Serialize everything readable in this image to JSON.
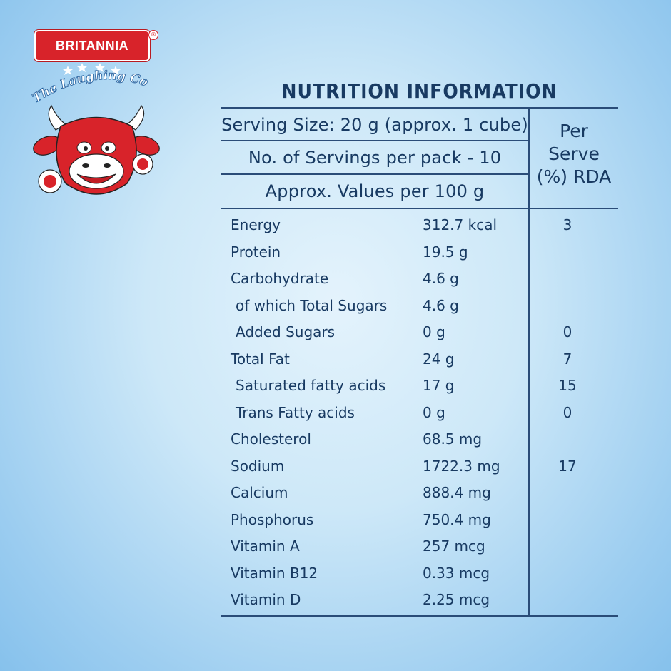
{
  "brand": {
    "name": "BRITANNIA",
    "registered_mark": "®",
    "sub_logo": "The Laughing Cow",
    "colors": {
      "red": "#d8232a",
      "navy": "#183a62"
    }
  },
  "title": "NUTRITION INFORMATION",
  "header": {
    "serving_size": "Serving Size: 20 g (approx. 1 cube)",
    "servings_per_pack": "No. of Servings per pack - 10",
    "values_per": "Approx. Values per 100 g",
    "rda_line1": "Per",
    "rda_line2": "Serve",
    "rda_line3": "(%) RDA"
  },
  "rows": [
    {
      "name": "Energy",
      "value": "312.7 kcal",
      "rda": "3"
    },
    {
      "name": "Protein",
      "value": "19.5 g",
      "rda": ""
    },
    {
      "name": "Carbohydrate",
      "value": "4.6 g",
      "rda": ""
    },
    {
      "name": "of which Total Sugars",
      "value": "4.6 g",
      "rda": ""
    },
    {
      "name": "Added Sugars",
      "value": "0 g",
      "rda": "0"
    },
    {
      "name": "Total Fat",
      "value": "24 g",
      "rda": "7"
    },
    {
      "name": "Saturated fatty acids",
      "value": "17 g",
      "rda": "15"
    },
    {
      "name": "Trans Fatty acids",
      "value": "0 g",
      "rda": "0"
    },
    {
      "name": "Cholesterol",
      "value": "68.5 mg",
      "rda": ""
    },
    {
      "name": "Sodium",
      "value": "1722.3 mg",
      "rda": "17"
    },
    {
      "name": "Calcium",
      "value": "888.4 mg",
      "rda": ""
    },
    {
      "name": "Phosphorus",
      "value": "750.4 mg",
      "rda": ""
    },
    {
      "name": "Vitamin A",
      "value": "257 mcg",
      "rda": ""
    },
    {
      "name": "Vitamin B12",
      "value": "0.33 mcg",
      "rda": ""
    },
    {
      "name": "Vitamin D",
      "value": "2.25 mcg",
      "rda": ""
    }
  ]
}
